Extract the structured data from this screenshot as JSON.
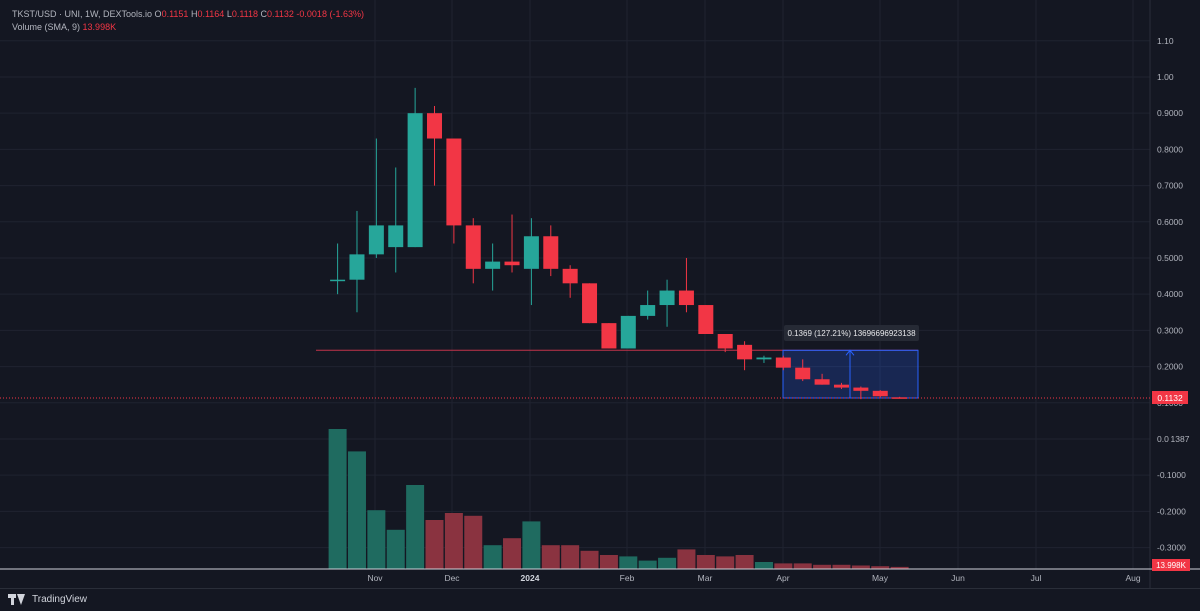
{
  "header": {
    "symbol": "TKST/USD · UNI, 1W, DEXTools.io",
    "o_label": "O",
    "o_value": "0.1151",
    "h_label": "H",
    "h_value": "0.1164",
    "l_label": "L",
    "l_value": "0.1118",
    "c_label": "C",
    "c_value": "0.1132",
    "change": "-0.0018 (-1.63%)",
    "volume_label": "Volume (SMA, 9)",
    "volume_value": "13.998K"
  },
  "footer": {
    "brand": "TradingView"
  },
  "colors": {
    "bg": "#141722",
    "up": "#26a69a",
    "down": "#f23645",
    "up_vol": "#1f6b60",
    "down_vol": "#8a3340",
    "grid": "#1f2330",
    "measure": "#2962ff"
  },
  "chart_data": {
    "type": "candlestick",
    "y_ticks": [
      "1.10",
      "1.00",
      "0.9000",
      "0.8000",
      "0.7000",
      "0.6000",
      "0.5000",
      "0.4000",
      "0.3000",
      "0.2000",
      "0.1000",
      "0.0 1387",
      "-0.1000",
      "-0.2000",
      "-0.3000"
    ],
    "x_labels": [
      "Nov",
      "Dec",
      "2024",
      "Feb",
      "Mar",
      "Apr",
      "May",
      "Jun",
      "Jul",
      "Aug"
    ],
    "candles": [
      {
        "o": 0.44,
        "h": 0.54,
        "l": 0.4,
        "c": 0.44
      },
      {
        "o": 0.44,
        "h": 0.63,
        "l": 0.35,
        "c": 0.51
      },
      {
        "o": 0.51,
        "h": 0.83,
        "l": 0.5,
        "c": 0.59
      },
      {
        "o": 0.53,
        "h": 0.75,
        "l": 0.46,
        "c": 0.59
      },
      {
        "o": 0.53,
        "h": 0.97,
        "l": 0.53,
        "c": 0.9
      },
      {
        "o": 0.9,
        "h": 0.92,
        "l": 0.7,
        "c": 0.83
      },
      {
        "o": 0.83,
        "h": 0.83,
        "l": 0.54,
        "c": 0.59
      },
      {
        "o": 0.59,
        "h": 0.61,
        "l": 0.43,
        "c": 0.47
      },
      {
        "o": 0.47,
        "h": 0.54,
        "l": 0.41,
        "c": 0.49
      },
      {
        "o": 0.49,
        "h": 0.62,
        "l": 0.46,
        "c": 0.48
      },
      {
        "o": 0.47,
        "h": 0.61,
        "l": 0.37,
        "c": 0.56
      },
      {
        "o": 0.56,
        "h": 0.59,
        "l": 0.45,
        "c": 0.47
      },
      {
        "o": 0.47,
        "h": 0.48,
        "l": 0.39,
        "c": 0.43
      },
      {
        "o": 0.43,
        "h": 0.43,
        "l": 0.32,
        "c": 0.32
      },
      {
        "o": 0.32,
        "h": 0.32,
        "l": 0.25,
        "c": 0.25
      },
      {
        "o": 0.25,
        "h": 0.34,
        "l": 0.25,
        "c": 0.34
      },
      {
        "o": 0.34,
        "h": 0.41,
        "l": 0.33,
        "c": 0.37
      },
      {
        "o": 0.37,
        "h": 0.44,
        "l": 0.31,
        "c": 0.41
      },
      {
        "o": 0.41,
        "h": 0.5,
        "l": 0.35,
        "c": 0.37
      },
      {
        "o": 0.37,
        "h": 0.37,
        "l": 0.29,
        "c": 0.29
      },
      {
        "o": 0.29,
        "h": 0.29,
        "l": 0.24,
        "c": 0.25
      },
      {
        "o": 0.26,
        "h": 0.27,
        "l": 0.19,
        "c": 0.22
      },
      {
        "o": 0.22,
        "h": 0.23,
        "l": 0.21,
        "c": 0.225
      },
      {
        "o": 0.225,
        "h": 0.23,
        "l": 0.19,
        "c": 0.197
      },
      {
        "o": 0.197,
        "h": 0.22,
        "l": 0.16,
        "c": 0.165
      },
      {
        "o": 0.165,
        "h": 0.18,
        "l": 0.15,
        "c": 0.15
      },
      {
        "o": 0.15,
        "h": 0.155,
        "l": 0.138,
        "c": 0.142
      },
      {
        "o": 0.142,
        "h": 0.145,
        "l": 0.11,
        "c": 0.133
      },
      {
        "o": 0.133,
        "h": 0.135,
        "l": 0.115,
        "c": 0.118
      },
      {
        "o": 0.1151,
        "h": 0.1164,
        "l": 0.1118,
        "c": 0.1132
      }
    ],
    "volume_levels": [
      1.0,
      0.84,
      0.42,
      0.28,
      0.6,
      0.35,
      0.4,
      0.38,
      0.17,
      0.22,
      0.34,
      0.17,
      0.17,
      0.13,
      0.1,
      0.09,
      0.06,
      0.08,
      0.14,
      0.1,
      0.09,
      0.1,
      0.05,
      0.04,
      0.04,
      0.03,
      0.03,
      0.025,
      0.02,
      0.015
    ],
    "last_price": "0.1132",
    "last_volume": "13.998K",
    "horizontal_line_value": 0.245,
    "measure_label": "0.1369 (127.21%) 13696696923138"
  }
}
